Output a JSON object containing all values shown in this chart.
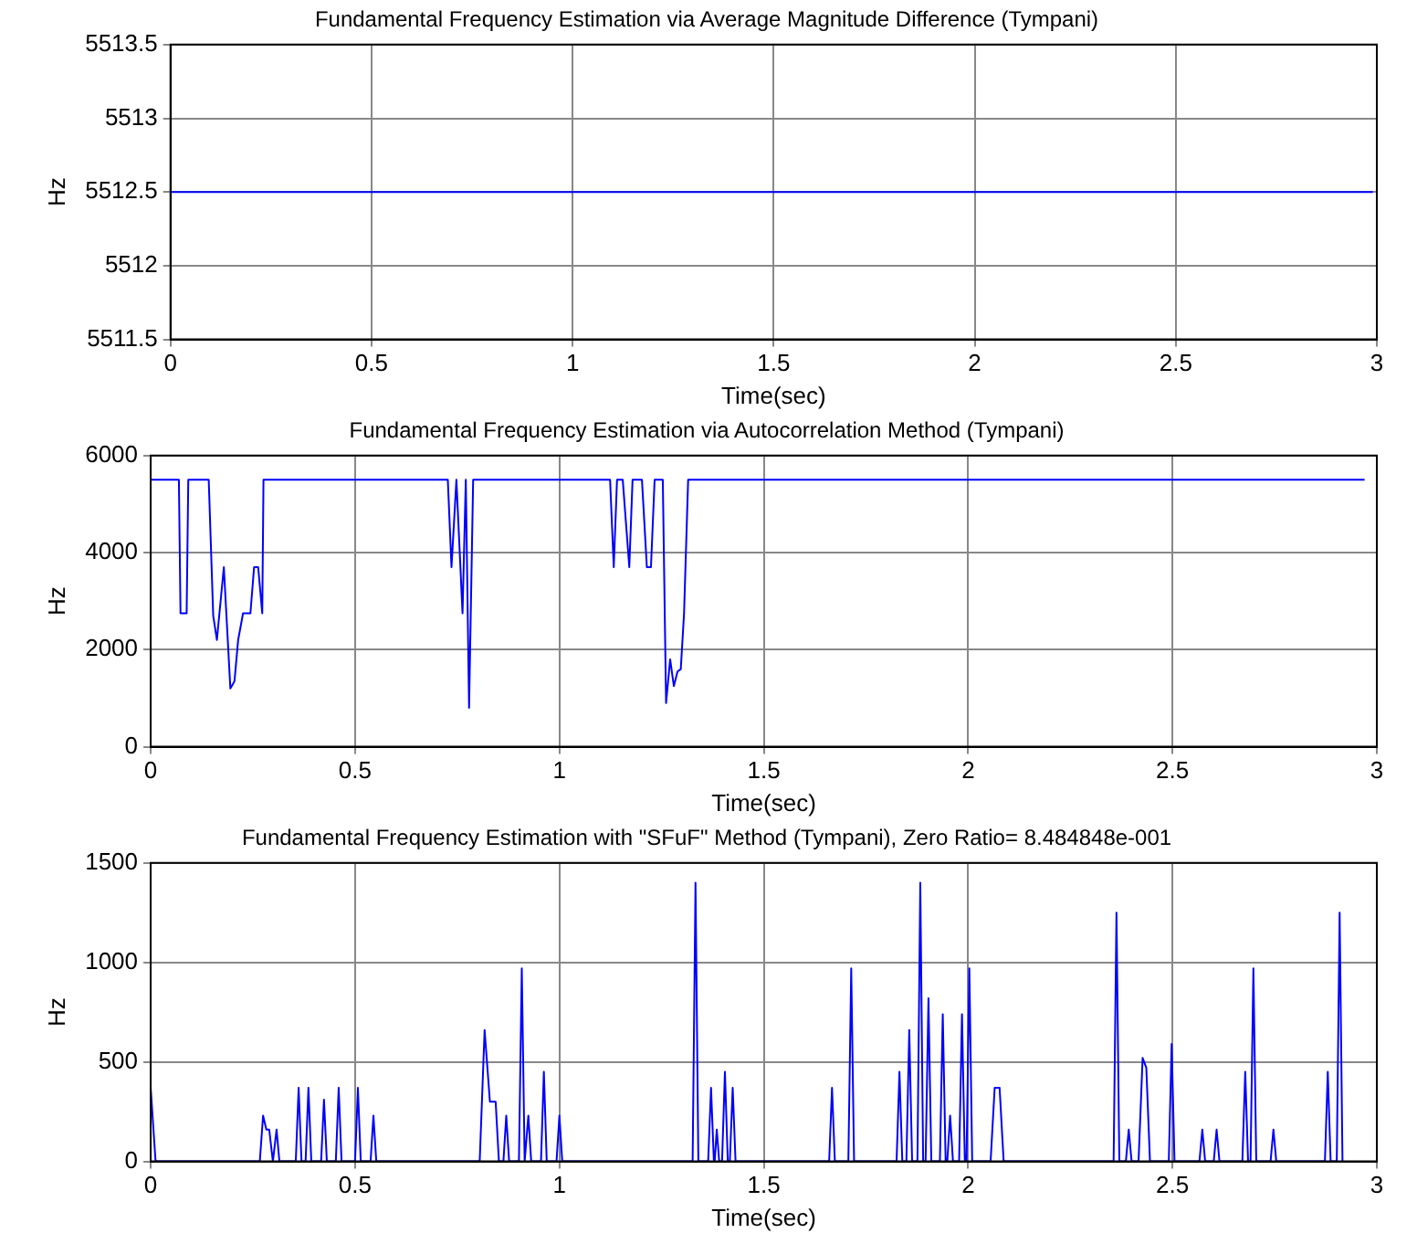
{
  "chart_data": [
    {
      "type": "line",
      "title": "Fundamental Frequency Estimation via Average Magnitude Difference (Tympani)",
      "xlabel": "Time(sec)",
      "ylabel": "Hz",
      "color": "#0000ff",
      "grid": true,
      "x": [
        0,
        2.99
      ],
      "values": [
        5512.5,
        5512.5
      ],
      "xlim": [
        0,
        3
      ],
      "xticks": [
        0,
        0.5,
        1,
        1.5,
        2,
        2.5,
        3
      ],
      "ylim": [
        5511.5,
        5513.5
      ],
      "yticks": [
        5511.5,
        5512,
        5512.5,
        5513,
        5513.5
      ]
    },
    {
      "type": "line",
      "title": "Fundamental Frequency Estimation via Autocorrelation Method (Tympani)",
      "xlabel": "Time(sec)",
      "ylabel": "Hz",
      "color": "#0000ff",
      "grid": true,
      "x": [
        0,
        0.069,
        0.073,
        0.088,
        0.092,
        0.142,
        0.153,
        0.162,
        0.179,
        0.195,
        0.205,
        0.214,
        0.226,
        0.244,
        0.253,
        0.263,
        0.273,
        0.276,
        0.727,
        0.736,
        0.748,
        0.763,
        0.771,
        0.779,
        0.789,
        1.124,
        1.133,
        1.141,
        1.155,
        1.171,
        1.179,
        1.202,
        1.214,
        1.224,
        1.233,
        1.253,
        1.261,
        1.271,
        1.28,
        1.289,
        1.297,
        1.305,
        1.315,
        2.97
      ],
      "values": [
        5500,
        5500,
        2750,
        2750,
        5500,
        5500,
        2700,
        2200,
        3700,
        1200,
        1350,
        2200,
        2750,
        2750,
        3700,
        3700,
        2750,
        5500,
        5500,
        3700,
        5500,
        2750,
        5500,
        800,
        5500,
        5500,
        3700,
        5500,
        5500,
        3700,
        5500,
        5500,
        3700,
        3700,
        5500,
        5500,
        900,
        1800,
        1250,
        1550,
        1600,
        2750,
        5500,
        5500
      ],
      "xlim": [
        0,
        3
      ],
      "xticks": [
        0,
        0.5,
        1,
        1.5,
        2,
        2.5,
        3
      ],
      "ylim": [
        0,
        6000
      ],
      "yticks": [
        0,
        2000,
        4000,
        6000
      ]
    },
    {
      "type": "line",
      "title": "Fundamental Frequency Estimation with \"SFuF\" Method (Tympani), Zero Ratio= 8.484848e-001",
      "xlabel": "Time(sec)",
      "ylabel": "Hz",
      "color": "#0000ff",
      "grid": true,
      "x": [
        0,
        0.012,
        0.267,
        0.275,
        0.283,
        0.29,
        0.299,
        0.308,
        0.315,
        0.355,
        0.362,
        0.369,
        0.379,
        0.386,
        0.393,
        0.417,
        0.424,
        0.431,
        0.453,
        0.46,
        0.467,
        0.5,
        0.507,
        0.514,
        0.538,
        0.545,
        0.552,
        0.805,
        0.817,
        0.83,
        0.844,
        0.852,
        0.863,
        0.87,
        0.877,
        0.901,
        0.908,
        0.915,
        0.917,
        0.924,
        0.931,
        0.955,
        0.962,
        0.969,
        0.993,
        1.0,
        1.007,
        1.326,
        1.333,
        1.34,
        1.364,
        1.371,
        1.378,
        1.38,
        1.385,
        1.391,
        1.398,
        1.405,
        1.412,
        1.417,
        1.424,
        1.431,
        1.66,
        1.667,
        1.674,
        1.707,
        1.714,
        1.721,
        1.825,
        1.832,
        1.839,
        1.849,
        1.856,
        1.863,
        1.876,
        1.883,
        1.89,
        1.896,
        1.903,
        1.91,
        1.931,
        1.938,
        1.945,
        1.949,
        1.956,
        1.963,
        1.978,
        1.985,
        1.992,
        1.996,
        2.003,
        2.01,
        2.055,
        2.065,
        2.077,
        2.087,
        2.356,
        2.363,
        2.37,
        2.386,
        2.393,
        2.4,
        2.417,
        2.427,
        2.436,
        2.445,
        2.491,
        2.498,
        2.505,
        2.566,
        2.573,
        2.58,
        2.601,
        2.608,
        2.615,
        2.671,
        2.678,
        2.685,
        2.691,
        2.698,
        2.705,
        2.74,
        2.747,
        2.754,
        2.873,
        2.88,
        2.887,
        2.902,
        2.909,
        2.916
      ],
      "values": [
        370,
        0,
        0,
        230,
        160,
        160,
        0,
        160,
        0,
        0,
        370,
        0,
        0,
        370,
        0,
        0,
        310,
        0,
        0,
        370,
        0,
        0,
        370,
        0,
        0,
        230,
        0,
        0,
        660,
        300,
        300,
        0,
        0,
        230,
        0,
        0,
        970,
        0,
        0,
        230,
        0,
        0,
        450,
        0,
        0,
        230,
        0,
        0,
        1400,
        0,
        0,
        370,
        0,
        0,
        160,
        0,
        0,
        450,
        0,
        0,
        370,
        0,
        0,
        370,
        0,
        0,
        970,
        0,
        0,
        450,
        0,
        0,
        660,
        0,
        0,
        1400,
        0,
        0,
        820,
        0,
        0,
        740,
        0,
        0,
        230,
        0,
        0,
        740,
        0,
        0,
        970,
        0,
        0,
        370,
        370,
        0,
        0,
        1250,
        0,
        0,
        160,
        0,
        0,
        520,
        470,
        0,
        0,
        590,
        0,
        0,
        160,
        0,
        0,
        160,
        0,
        0,
        450,
        0,
        0,
        970,
        0,
        0,
        160,
        0,
        0,
        450,
        0,
        0,
        1250,
        0
      ],
      "xlim": [
        0,
        3
      ],
      "xticks": [
        0,
        0.5,
        1,
        1.5,
        2,
        2.5,
        3
      ],
      "ylim": [
        0,
        1500
      ],
      "yticks": [
        0,
        500,
        1000,
        1500
      ]
    }
  ]
}
